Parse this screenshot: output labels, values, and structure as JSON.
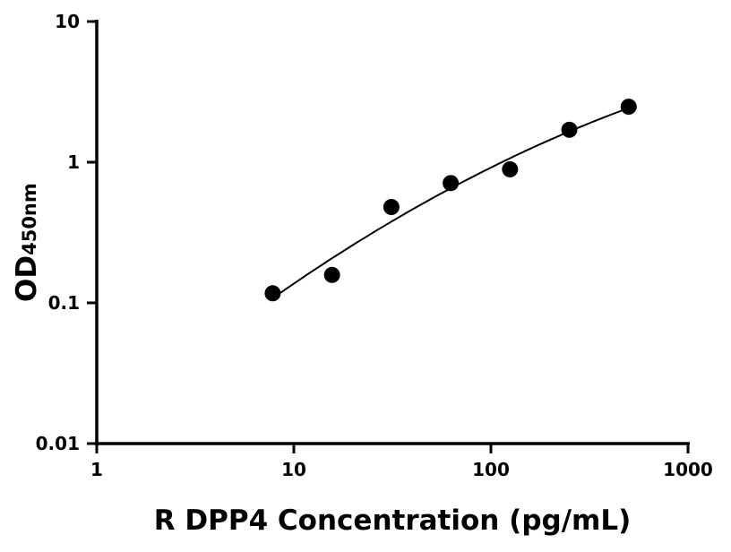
{
  "chart_data": {
    "type": "scatter",
    "xlabel": "R DPP4 Concentration (pg/mL)",
    "ylabel": "OD",
    "ylabel_sub": "450nm",
    "xscale": "log",
    "yscale": "log",
    "xlim": [
      1,
      1000
    ],
    "ylim": [
      0.01,
      10
    ],
    "xticks": [
      "1",
      "10",
      "100",
      "1000"
    ],
    "yticks": [
      "0.01",
      "0.1",
      "1",
      "10"
    ],
    "grid": false,
    "series": [
      {
        "x": [
          7.8125,
          15.625,
          31.25,
          62.5,
          125,
          250,
          500
        ],
        "y": [
          0.117,
          0.158,
          0.48,
          0.71,
          0.89,
          1.7,
          2.48
        ],
        "color": "#000000",
        "fit_curve": true
      }
    ]
  }
}
